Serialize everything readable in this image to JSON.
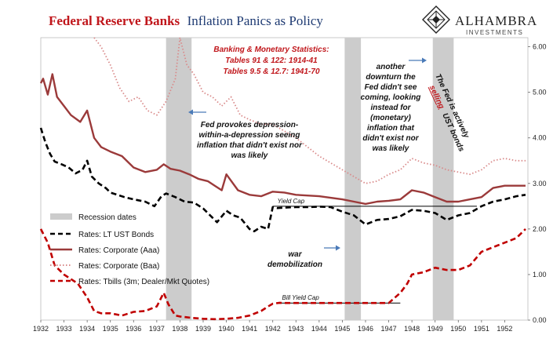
{
  "title": {
    "part1": "Federal Reserve Banks",
    "part2": "Inflation Panics as Policy"
  },
  "brand": {
    "name": "ALHAMBRA",
    "sub": "INVESTMENTS",
    "icon": "diamond-logo-icon"
  },
  "colors": {
    "title_red": "#c0161b",
    "title_blue": "#1f3b73",
    "corporate": "#9b3a3a",
    "baa": "#d98a8a",
    "tbills": "#c00000",
    "recession": "#cccccc",
    "arrow": "#4a7ab8"
  },
  "chart_data": {
    "type": "line",
    "x_range": [
      1932,
      1953
    ],
    "x_ticks": [
      "1932",
      "1933",
      "1934",
      "1935",
      "1936",
      "1937",
      "1938",
      "1939",
      "1940",
      "1941",
      "1942",
      "1943",
      "1944",
      "1945",
      "1946",
      "1947",
      "1948",
      "1949",
      "1950",
      "1951",
      "1952"
    ],
    "y_range": [
      0,
      6.2
    ],
    "y_ticks": [
      "0.00",
      "1.00",
      "2.00",
      "3.00",
      "4.00",
      "5.00",
      "6.00"
    ],
    "y_axis_side": "right",
    "recessions": [
      [
        1937.4,
        1938.5
      ],
      [
        1945.1,
        1945.8
      ],
      [
        1948.9,
        1949.8
      ]
    ],
    "series": [
      {
        "name": "Rates: LT UST Bonds",
        "style": "black-dashed",
        "x": [
          1932.0,
          1932.2,
          1932.4,
          1932.6,
          1932.9,
          1933.2,
          1933.5,
          1933.8,
          1934.0,
          1934.2,
          1934.5,
          1934.8,
          1935.0,
          1935.3,
          1935.6,
          1936.0,
          1936.5,
          1936.9,
          1937.2,
          1937.4,
          1937.8,
          1938.2,
          1938.6,
          1939.0,
          1939.3,
          1939.6,
          1940.0,
          1940.3,
          1940.6,
          1941.0,
          1941.2,
          1941.5,
          1941.8,
          1942.0,
          1942.2,
          1942.5,
          1943.0,
          1943.5,
          1944.0,
          1944.5,
          1945.0,
          1945.5,
          1946.0,
          1946.5,
          1947.0,
          1947.5,
          1948.0,
          1948.5,
          1949.0,
          1949.5,
          1950.0,
          1950.5,
          1951.0,
          1951.5,
          1952.0,
          1952.5,
          1952.9
        ],
        "y": [
          4.22,
          3.9,
          3.65,
          3.48,
          3.42,
          3.35,
          3.22,
          3.3,
          3.5,
          3.15,
          3.0,
          2.9,
          2.8,
          2.75,
          2.7,
          2.65,
          2.6,
          2.5,
          2.72,
          2.78,
          2.7,
          2.6,
          2.58,
          2.45,
          2.3,
          2.15,
          2.4,
          2.3,
          2.25,
          2.0,
          1.95,
          2.05,
          2.0,
          2.48,
          2.46,
          2.47,
          2.48,
          2.48,
          2.49,
          2.48,
          2.38,
          2.3,
          2.1,
          2.2,
          2.22,
          2.28,
          2.42,
          2.4,
          2.35,
          2.2,
          2.3,
          2.35,
          2.5,
          2.6,
          2.65,
          2.72,
          2.75
        ]
      },
      {
        "name": "Rates: Corporate (Aaa)",
        "style": "brown-solid",
        "x": [
          1932.0,
          1932.1,
          1932.3,
          1932.5,
          1932.7,
          1933.0,
          1933.3,
          1933.7,
          1934.0,
          1934.3,
          1934.6,
          1935.0,
          1935.5,
          1936.0,
          1936.5,
          1937.0,
          1937.3,
          1937.6,
          1938.0,
          1938.4,
          1938.8,
          1939.2,
          1939.5,
          1939.8,
          1940.0,
          1940.5,
          1941.0,
          1941.5,
          1942.0,
          1942.5,
          1943.0,
          1944.0,
          1945.0,
          1945.5,
          1946.0,
          1946.5,
          1947.0,
          1947.5,
          1948.0,
          1948.5,
          1949.0,
          1949.5,
          1950.0,
          1950.5,
          1951.0,
          1951.5,
          1952.0,
          1952.5,
          1952.9
        ],
        "y": [
          5.2,
          5.3,
          4.95,
          5.4,
          4.9,
          4.7,
          4.5,
          4.35,
          4.6,
          4.0,
          3.8,
          3.7,
          3.6,
          3.35,
          3.25,
          3.3,
          3.42,
          3.32,
          3.28,
          3.2,
          3.1,
          3.05,
          2.95,
          2.85,
          3.2,
          2.85,
          2.75,
          2.72,
          2.82,
          2.8,
          2.75,
          2.72,
          2.65,
          2.6,
          2.55,
          2.6,
          2.62,
          2.65,
          2.85,
          2.8,
          2.7,
          2.6,
          2.6,
          2.65,
          2.7,
          2.9,
          2.95,
          2.95,
          2.95
        ]
      },
      {
        "name": "Rates: Corporate (Baa)",
        "style": "pink-dotted",
        "x": [
          1934.3,
          1934.6,
          1935.0,
          1935.4,
          1935.8,
          1936.2,
          1936.6,
          1937.0,
          1937.4,
          1937.8,
          1938.0,
          1938.3,
          1938.6,
          1939.0,
          1939.4,
          1939.8,
          1940.2,
          1940.6,
          1941.0,
          1941.5,
          1942.0,
          1943.0,
          1944.0,
          1945.0,
          1946.0,
          1946.5,
          1947.0,
          1947.5,
          1948.0,
          1948.5,
          1949.0,
          1949.5,
          1950.0,
          1950.5,
          1951.0,
          1951.5,
          1952.0,
          1952.5,
          1952.9
        ],
        "y": [
          6.2,
          6.0,
          5.6,
          5.1,
          4.8,
          4.9,
          4.6,
          4.5,
          4.8,
          5.3,
          6.2,
          5.6,
          5.4,
          5.0,
          4.9,
          4.7,
          4.9,
          4.5,
          4.4,
          4.3,
          4.3,
          4.0,
          3.6,
          3.3,
          3.0,
          3.05,
          3.2,
          3.3,
          3.55,
          3.45,
          3.4,
          3.3,
          3.25,
          3.2,
          3.3,
          3.5,
          3.55,
          3.5,
          3.5
        ]
      },
      {
        "name": "Rates: Tbills (3m; Dealer/Mkt Quotes)",
        "style": "red-dashed",
        "x": [
          1932.0,
          1932.3,
          1932.6,
          1933.0,
          1933.3,
          1933.6,
          1934.0,
          1934.3,
          1934.6,
          1935.0,
          1935.5,
          1936.0,
          1936.5,
          1937.0,
          1937.3,
          1937.5,
          1937.8,
          1938.0,
          1938.5,
          1939.0,
          1939.5,
          1940.0,
          1940.5,
          1941.0,
          1941.5,
          1941.8,
          1942.0,
          1942.3,
          1942.5,
          1943.0,
          1944.0,
          1945.0,
          1946.0,
          1947.0,
          1947.5,
          1947.8,
          1948.0,
          1948.5,
          1949.0,
          1949.5,
          1950.0,
          1950.5,
          1951.0,
          1951.5,
          1952.0,
          1952.5,
          1952.9
        ],
        "y": [
          2.0,
          1.7,
          1.2,
          1.0,
          0.9,
          0.8,
          0.5,
          0.2,
          0.15,
          0.15,
          0.1,
          0.18,
          0.2,
          0.3,
          0.6,
          0.35,
          0.1,
          0.08,
          0.05,
          0.03,
          0.02,
          0.03,
          0.05,
          0.1,
          0.2,
          0.3,
          0.36,
          0.38,
          0.375,
          0.375,
          0.375,
          0.375,
          0.375,
          0.375,
          0.6,
          0.8,
          1.0,
          1.05,
          1.15,
          1.1,
          1.1,
          1.2,
          1.5,
          1.6,
          1.7,
          1.8,
          2.0
        ]
      }
    ],
    "legend": [
      "Recession dates",
      "Rates: LT UST Bonds",
      "Rates: Corporate (Aaa)",
      "Rates: Corporate (Baa)",
      "Rates: Tbills (3m; Dealer/Mkt Quotes)"
    ],
    "legend_position": "bottom-left",
    "grid": false
  },
  "annotations": {
    "stats_title": "Banking & Monetary Statistics:",
    "stats_line1": "Tables 91 & 122: 1914-41",
    "stats_line2": "Tables 9.5 & 12.7: 1941-70",
    "fed_provokes": [
      "Fed provokes depression-",
      "within-a-depression seeing",
      "inflation that didn't exist nor",
      "was likely"
    ],
    "another_downturn": [
      "another",
      "downturn  the",
      "Fed didn't see",
      "coming, looking",
      "instead for",
      "(monetary)",
      "inflation that",
      "didn't exist nor",
      "was likely"
    ],
    "fed_selling_1": "The Fed is actively",
    "fed_selling_2": "selling",
    "fed_selling_3": "UST bonds",
    "war_demob": [
      "war",
      "demobilization"
    ],
    "yield_cap": "Yield Cap",
    "bill_yield_cap": "Bill Yield Cap"
  }
}
